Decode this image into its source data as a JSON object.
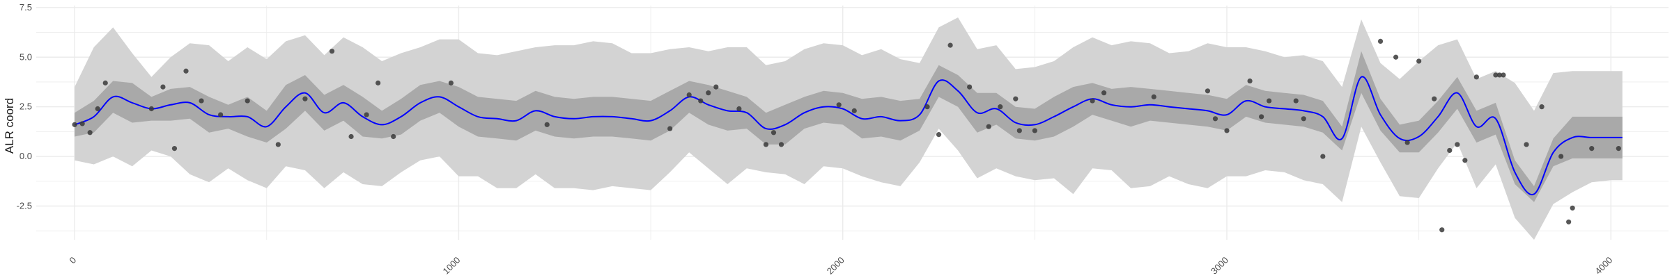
{
  "chart_data": {
    "type": "line",
    "title": "",
    "xlabel": "",
    "ylabel": "ALR coord",
    "xlim": [
      -100,
      4150
    ],
    "ylim": [
      -4.2,
      7.6
    ],
    "x_ticks": [
      0,
      1000,
      2000,
      3000,
      4000
    ],
    "x_tick_labels": [
      "0",
      "1000",
      "2000",
      "3000",
      "4000"
    ],
    "y_ticks": [
      -2.5,
      0.0,
      2.5,
      5.0,
      7.5
    ],
    "y_tick_labels": [
      "-2.5",
      "0.0",
      "2.5",
      "5.0",
      "7.5"
    ],
    "x_tick_rotation_deg": 45,
    "grid": true,
    "legend": "none",
    "colors": {
      "mean_line": "#0000ff",
      "inner_band": "#a9a9a9",
      "outer_band": "#d3d3d3",
      "points": "#3a3a3a",
      "grid": "#ebebeb"
    },
    "series": [
      {
        "kind": "line",
        "x": [
          0,
          50,
          100,
          150,
          200,
          250,
          300,
          350,
          400,
          450,
          500,
          550,
          600,
          650,
          700,
          750,
          800,
          850,
          900,
          950,
          1000,
          1050,
          1100,
          1150,
          1200,
          1250,
          1300,
          1350,
          1400,
          1450,
          1500,
          1550,
          1600,
          1650,
          1700,
          1750,
          1800,
          1850,
          1900,
          1950,
          2000,
          2050,
          2100,
          2150,
          2200,
          2250,
          2300,
          2350,
          2400,
          2450,
          2500,
          2550,
          2600,
          2650,
          2700,
          2750,
          2800,
          2850,
          2900,
          2950,
          3000,
          3050,
          3100,
          3150,
          3200,
          3250,
          3300,
          3350,
          3400,
          3450,
          3500,
          3550,
          3600,
          3650,
          3700,
          3750,
          3800,
          3850,
          3900,
          3950,
          4000,
          4030
        ],
        "y": [
          1.6,
          2.0,
          3.0,
          2.7,
          2.4,
          2.6,
          2.7,
          2.1,
          2.0,
          2.0,
          1.5,
          2.5,
          3.2,
          2.2,
          2.7,
          2.0,
          1.6,
          2.0,
          2.7,
          3.0,
          2.5,
          2.0,
          1.9,
          1.8,
          2.3,
          2.0,
          1.9,
          2.0,
          2.0,
          1.9,
          1.8,
          2.3,
          3.0,
          2.6,
          2.3,
          2.2,
          1.4,
          1.6,
          2.2,
          2.5,
          2.4,
          1.9,
          2.0,
          1.8,
          2.1,
          3.8,
          3.3,
          2.2,
          2.4,
          1.7,
          1.6,
          2.0,
          2.5,
          2.9,
          2.6,
          2.5,
          2.6,
          2.5,
          2.4,
          2.3,
          2.1,
          2.8,
          2.5,
          2.4,
          2.3,
          2.0,
          0.9,
          4.0,
          2.1,
          0.9,
          1.0,
          2.0,
          3.2,
          1.5,
          1.9,
          -0.8,
          -1.9,
          0.2,
          0.95,
          0.95,
          0.95,
          0.95
        ]
      },
      {
        "kind": "band-inner",
        "x": [
          0,
          50,
          100,
          150,
          200,
          250,
          300,
          350,
          400,
          450,
          500,
          550,
          600,
          650,
          700,
          750,
          800,
          850,
          900,
          950,
          1000,
          1050,
          1100,
          1150,
          1200,
          1250,
          1300,
          1350,
          1400,
          1450,
          1500,
          1550,
          1600,
          1650,
          1700,
          1750,
          1800,
          1850,
          1900,
          1950,
          2000,
          2050,
          2100,
          2150,
          2200,
          2250,
          2300,
          2350,
          2400,
          2450,
          2500,
          2550,
          2600,
          2650,
          2700,
          2750,
          2800,
          2850,
          2900,
          2950,
          3000,
          3050,
          3100,
          3150,
          3200,
          3250,
          3300,
          3350,
          3400,
          3450,
          3500,
          3550,
          3600,
          3650,
          3700,
          3750,
          3800,
          3850,
          3900,
          3950,
          4000,
          4030
        ],
        "y_lower": [
          1.0,
          1.2,
          2.2,
          1.7,
          1.8,
          1.8,
          1.9,
          1.2,
          1.4,
          1.0,
          0.7,
          1.4,
          2.3,
          1.3,
          1.8,
          1.0,
          0.9,
          1.1,
          1.8,
          2.2,
          1.5,
          1.0,
          0.9,
          0.8,
          1.3,
          1.0,
          0.9,
          1.0,
          1.0,
          0.9,
          0.8,
          1.3,
          2.2,
          1.6,
          1.3,
          1.4,
          0.6,
          0.6,
          1.4,
          1.7,
          1.6,
          0.9,
          1.0,
          0.8,
          1.3,
          3.0,
          2.5,
          1.2,
          1.6,
          0.9,
          0.8,
          1.0,
          1.5,
          2.1,
          1.8,
          1.5,
          1.8,
          1.7,
          1.6,
          1.5,
          1.3,
          2.0,
          1.7,
          1.6,
          1.5,
          1.2,
          0.3,
          3.2,
          1.3,
          0.2,
          0.2,
          1.2,
          2.4,
          0.7,
          1.1,
          -1.4,
          -2.3,
          -0.5,
          -0.1,
          -0.1,
          -0.1,
          -0.1
        ],
        "y_upper": [
          2.2,
          2.8,
          3.8,
          3.7,
          3.0,
          3.4,
          3.5,
          3.0,
          2.6,
          3.0,
          2.3,
          3.6,
          4.1,
          3.1,
          3.6,
          3.0,
          2.3,
          2.9,
          3.6,
          3.8,
          3.5,
          3.0,
          2.9,
          2.8,
          3.3,
          3.0,
          2.9,
          3.0,
          3.0,
          2.9,
          2.8,
          3.3,
          3.8,
          3.6,
          3.3,
          3.0,
          2.2,
          2.6,
          3.0,
          3.3,
          3.2,
          2.9,
          3.0,
          2.8,
          2.9,
          4.6,
          4.1,
          3.2,
          3.2,
          2.5,
          2.4,
          3.0,
          3.5,
          3.7,
          3.4,
          3.5,
          3.4,
          3.3,
          3.2,
          3.1,
          2.9,
          3.6,
          3.3,
          3.2,
          3.1,
          2.8,
          1.5,
          5.3,
          2.9,
          1.6,
          1.8,
          2.8,
          4.0,
          2.3,
          2.7,
          -0.2,
          -1.5,
          0.9,
          2.0,
          2.0,
          2.0,
          2.0
        ]
      },
      {
        "kind": "band-outer",
        "x": [
          0,
          50,
          100,
          150,
          200,
          250,
          300,
          350,
          400,
          450,
          500,
          550,
          600,
          650,
          700,
          750,
          800,
          850,
          900,
          950,
          1000,
          1050,
          1100,
          1150,
          1200,
          1250,
          1300,
          1350,
          1400,
          1450,
          1500,
          1550,
          1600,
          1650,
          1700,
          1750,
          1800,
          1850,
          1900,
          1950,
          2000,
          2050,
          2100,
          2150,
          2200,
          2250,
          2300,
          2350,
          2400,
          2450,
          2500,
          2550,
          2600,
          2650,
          2700,
          2750,
          2800,
          2850,
          2900,
          2950,
          3000,
          3050,
          3100,
          3150,
          3200,
          3250,
          3300,
          3350,
          3400,
          3450,
          3500,
          3550,
          3600,
          3650,
          3700,
          3750,
          3800,
          3850,
          3900,
          3950,
          4000,
          4030
        ],
        "y_lower": [
          -0.2,
          -0.4,
          0.0,
          -0.5,
          0.3,
          0.0,
          -0.9,
          -1.3,
          -0.6,
          -1.2,
          -1.6,
          -0.5,
          -0.7,
          -1.6,
          -0.8,
          -1.4,
          -1.5,
          -0.8,
          -0.2,
          0.0,
          -1.0,
          -1.0,
          -1.6,
          -1.6,
          -0.9,
          -1.6,
          -1.6,
          -1.7,
          -1.5,
          -1.6,
          -1.7,
          -0.8,
          0.2,
          -0.6,
          -1.4,
          -0.6,
          -0.8,
          -0.9,
          -1.4,
          -0.5,
          -0.6,
          -1.0,
          -1.3,
          -1.5,
          -0.3,
          1.4,
          0.3,
          -1.1,
          -0.6,
          -1.0,
          -1.2,
          -1.1,
          -1.9,
          -0.6,
          -0.7,
          -1.6,
          -1.5,
          -1.0,
          -1.4,
          -1.6,
          -1.0,
          -1.0,
          -0.7,
          -0.8,
          -1.2,
          -1.4,
          -2.3,
          1.5,
          -0.3,
          -2.0,
          -2.1,
          -0.6,
          0.7,
          -1.6,
          -0.4,
          -3.1,
          -4.2,
          -2.4,
          -1.8,
          -1.3,
          -1.2,
          -1.2
        ],
        "y_upper": [
          3.5,
          5.5,
          6.5,
          5.2,
          4.0,
          5.0,
          5.7,
          5.6,
          4.8,
          5.5,
          4.9,
          5.8,
          6.1,
          5.1,
          6.0,
          5.5,
          4.8,
          5.2,
          5.5,
          5.9,
          5.9,
          5.2,
          5.1,
          5.3,
          5.5,
          5.6,
          5.6,
          5.8,
          5.7,
          5.2,
          5.2,
          5.4,
          5.5,
          5.3,
          5.5,
          5.5,
          4.6,
          4.8,
          5.4,
          5.7,
          5.6,
          5.1,
          5.4,
          4.9,
          4.7,
          6.5,
          7.0,
          5.4,
          5.6,
          4.4,
          4.5,
          4.8,
          5.5,
          6.0,
          5.6,
          5.8,
          5.7,
          5.2,
          5.3,
          5.7,
          5.5,
          5.5,
          5.3,
          5.0,
          5.1,
          4.8,
          3.5,
          6.9,
          4.7,
          3.9,
          4.8,
          5.6,
          5.9,
          3.9,
          4.3,
          3.7,
          2.3,
          4.2,
          4.3,
          4.3,
          4.3,
          4.3
        ]
      },
      {
        "kind": "points",
        "x": [
          0,
          20,
          40,
          60,
          80,
          200,
          230,
          260,
          290,
          330,
          380,
          450,
          530,
          600,
          670,
          720,
          760,
          790,
          830,
          980,
          1230,
          1550,
          1600,
          1630,
          1650,
          1670,
          1730,
          1800,
          1820,
          1840,
          1990,
          2030,
          2220,
          2250,
          2280,
          2330,
          2380,
          2410,
          2450,
          2460,
          2500,
          2650,
          2680,
          2810,
          2950,
          2970,
          3000,
          3060,
          3090,
          3110,
          3180,
          3200,
          3250,
          3400,
          3440,
          3470,
          3500,
          3540,
          3560,
          3580,
          3600,
          3620,
          3650,
          3700,
          3710,
          3720,
          3780,
          3820,
          3870,
          3890,
          3900,
          3950,
          4020
        ],
        "y": [
          1.6,
          1.65,
          1.2,
          2.4,
          3.7,
          2.4,
          3.5,
          0.4,
          4.3,
          2.8,
          2.1,
          2.8,
          0.6,
          2.9,
          5.3,
          1.0,
          2.1,
          3.7,
          1.0,
          3.7,
          1.6,
          1.4,
          3.1,
          2.8,
          3.2,
          3.5,
          2.4,
          0.6,
          1.2,
          0.6,
          2.6,
          2.3,
          2.5,
          1.1,
          5.6,
          3.5,
          1.5,
          2.5,
          2.9,
          1.3,
          1.3,
          2.8,
          3.2,
          3.0,
          3.3,
          1.9,
          1.3,
          3.8,
          2.0,
          2.8,
          2.8,
          1.9,
          0.0,
          5.8,
          5.0,
          0.7,
          4.8,
          2.9,
          -3.7,
          0.3,
          0.6,
          -0.2,
          4.0,
          4.1,
          4.1,
          4.1,
          0.6,
          2.5,
          0.0,
          -3.3,
          -2.6,
          0.4,
          0.4
        ]
      }
    ]
  }
}
